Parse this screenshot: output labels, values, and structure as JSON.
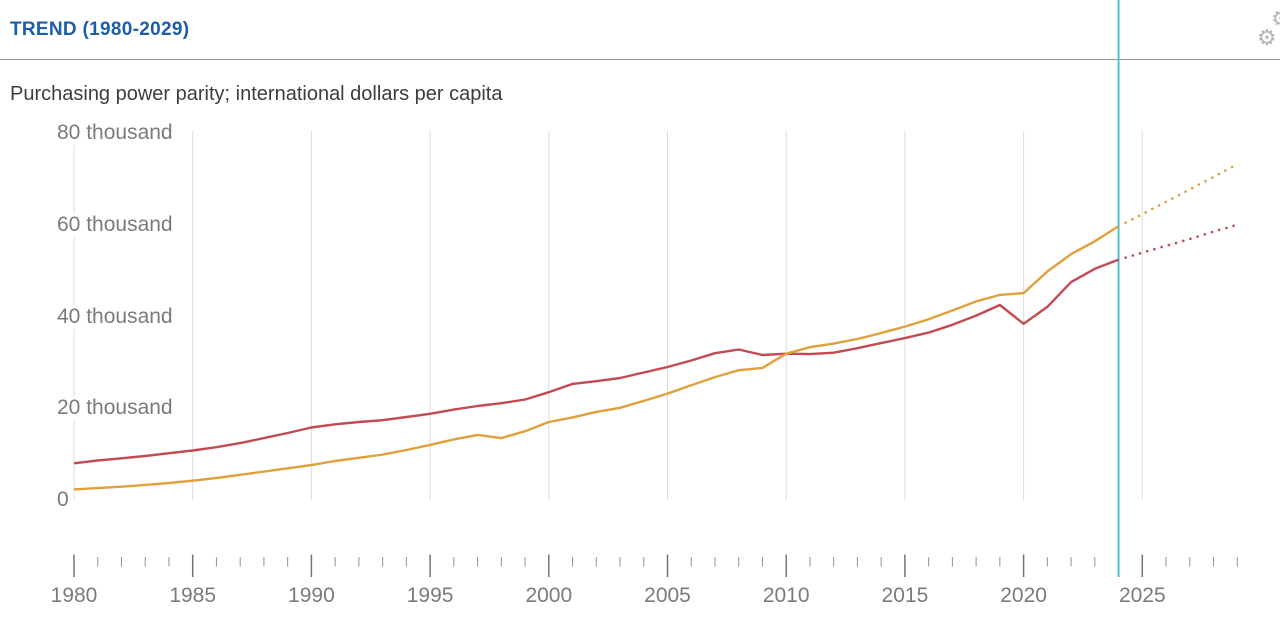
{
  "header": {
    "title": "TREND (1980-2029)"
  },
  "subtitle": "Purchasing power parity; international dollars per capita",
  "icons": {
    "settings": "gear-icon",
    "settings_partial": "gear-icon"
  },
  "colors": {
    "title_blue": "#1d5da9",
    "subtitle_gray": "#3d3d3d",
    "axis_label_gray": "#7b7b7b",
    "gridline": "#dcdcdc",
    "tick_major": "#6e7484",
    "tick_minor": "#8d919c",
    "divider": "#929292",
    "now_line": "#4bc2cf",
    "series_red": "#c34a53",
    "series_orange": "#e0a03c",
    "icon_gray": "#b5b5b5"
  },
  "chart_data": {
    "type": "line",
    "title": "TREND (1980-2029)",
    "subtitle": "Purchasing power parity; international dollars per capita",
    "ylabel": "international dollars per capita",
    "xlim": [
      1980,
      2029
    ],
    "ylim": [
      0,
      80000
    ],
    "grid": "vertical-only",
    "legend": "none",
    "projection_start": 2024,
    "now_line_x": 2024,
    "x": [
      1980,
      1981,
      1982,
      1983,
      1984,
      1985,
      1986,
      1987,
      1988,
      1989,
      1990,
      1991,
      1992,
      1993,
      1994,
      1995,
      1996,
      1997,
      1998,
      1999,
      2000,
      2001,
      2002,
      2003,
      2004,
      2005,
      2006,
      2007,
      2008,
      2009,
      2010,
      2011,
      2012,
      2013,
      2014,
      2015,
      2016,
      2017,
      2018,
      2019,
      2020,
      2021,
      2022,
      2023,
      2024,
      2025,
      2026,
      2027,
      2028,
      2029
    ],
    "x_major_ticks": [
      1980,
      1985,
      1990,
      1995,
      2000,
      2005,
      2010,
      2015,
      2020,
      2025
    ],
    "x_major_labels": [
      "1980",
      "1985",
      "1990",
      "1995",
      "2000",
      "2005",
      "2010",
      "2015",
      "2020",
      "2025"
    ],
    "y_ticks": [
      {
        "value": 80000,
        "label": "80 thousand"
      },
      {
        "value": 60000,
        "label": "60 thousand"
      },
      {
        "value": 40000,
        "label": "40 thousand"
      },
      {
        "value": 20000,
        "label": "20 thousand"
      },
      {
        "value": 0,
        "label": "0"
      }
    ],
    "series": [
      {
        "name": "red-series",
        "color": "#c34a53",
        "solid_until": 2024,
        "values": [
          8000,
          8600,
          9100,
          9600,
          10200,
          10800,
          11500,
          12400,
          13500,
          14600,
          15800,
          16500,
          17000,
          17400,
          18100,
          18800,
          19700,
          20500,
          21100,
          21900,
          23500,
          25300,
          25900,
          26600,
          27800,
          29000,
          30400,
          32000,
          32800,
          31600,
          31900,
          31800,
          32100,
          33100,
          34200,
          35300,
          36500,
          38200,
          40200,
          42500,
          38400,
          42100,
          47500,
          50400,
          52400,
          53900,
          55400,
          56900,
          58500,
          60000
        ]
      },
      {
        "name": "orange-series",
        "color": "#e0a03c",
        "solid_until": 2024,
        "values": [
          2300,
          2600,
          2900,
          3300,
          3700,
          4200,
          4800,
          5500,
          6200,
          6900,
          7600,
          8500,
          9200,
          9900,
          10900,
          12000,
          13200,
          14200,
          13500,
          15000,
          17000,
          18000,
          19200,
          20100,
          21600,
          23200,
          25000,
          26800,
          28300,
          28800,
          31900,
          33300,
          34100,
          35100,
          36400,
          37800,
          39400,
          41300,
          43300,
          44700,
          45100,
          49800,
          53600,
          56400,
          59700,
          62300,
          65000,
          67700,
          70400,
          73200
        ]
      }
    ]
  }
}
